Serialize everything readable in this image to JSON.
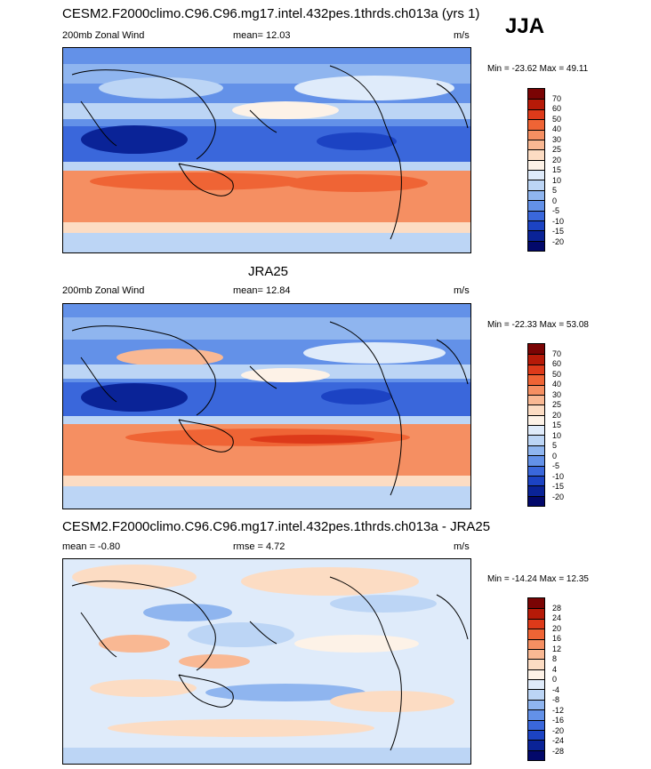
{
  "season": "JJA",
  "panels": [
    {
      "id": "model",
      "title": "CESM2.F2000climo.C96.C96.mg17.intel.432pes.1thrds.ch013a (yrs 1)",
      "left_label": "200mb Zonal Wind",
      "center_label": "mean=  12.03",
      "units": "m/s",
      "minmax": "Min = -23.62 Max =  49.11",
      "colorbar": {
        "labels": [
          "70",
          "60",
          "50",
          "40",
          "30",
          "25",
          "20",
          "15",
          "10",
          "5",
          "0",
          "-5",
          "-10",
          "-15",
          "-20"
        ],
        "colors": [
          "#7a0404",
          "#b61a08",
          "#dd3a1a",
          "#ef6435",
          "#f58f62",
          "#f9b893",
          "#fcdcc3",
          "#fdf2e7",
          "#dfebfa",
          "#bcd5f5",
          "#8fb5ef",
          "#6391e8",
          "#3a67db",
          "#1c43c3",
          "#0a2397",
          "#02086a"
        ]
      }
    },
    {
      "id": "obs",
      "title": "JRA25",
      "left_label": "200mb Zonal Wind",
      "center_label": "mean=  12.84",
      "units": "m/s",
      "minmax": "Min = -22.33 Max =  53.08",
      "colorbar": {
        "labels": [
          "70",
          "60",
          "50",
          "40",
          "30",
          "25",
          "20",
          "15",
          "10",
          "5",
          "0",
          "-5",
          "-10",
          "-15",
          "-20"
        ],
        "colors": [
          "#7a0404",
          "#b61a08",
          "#dd3a1a",
          "#ef6435",
          "#f58f62",
          "#f9b893",
          "#fcdcc3",
          "#fdf2e7",
          "#dfebfa",
          "#bcd5f5",
          "#8fb5ef",
          "#6391e8",
          "#3a67db",
          "#1c43c3",
          "#0a2397",
          "#02086a"
        ]
      }
    },
    {
      "id": "diff",
      "title": "CESM2.F2000climo.C96.C96.mg17.intel.432pes.1thrds.ch013a - JRA25",
      "left_label": "mean =  -0.80",
      "center_label": "rmse =   4.72",
      "units": "m/s",
      "minmax": "Min = -14.24 Max =  12.35",
      "colorbar": {
        "labels": [
          "28",
          "24",
          "20",
          "16",
          "12",
          "8",
          "4",
          "0",
          "-4",
          "-8",
          "-12",
          "-16",
          "-20",
          "-24",
          "-28"
        ],
        "colors": [
          "#7a0404",
          "#b61a08",
          "#dd3a1a",
          "#ef6435",
          "#f58f62",
          "#f9b893",
          "#fcdcc3",
          "#fdf2e7",
          "#dfebfa",
          "#bcd5f5",
          "#8fb5ef",
          "#6391e8",
          "#3a67db",
          "#1c43c3",
          "#0a2397",
          "#02086a"
        ]
      }
    }
  ]
}
